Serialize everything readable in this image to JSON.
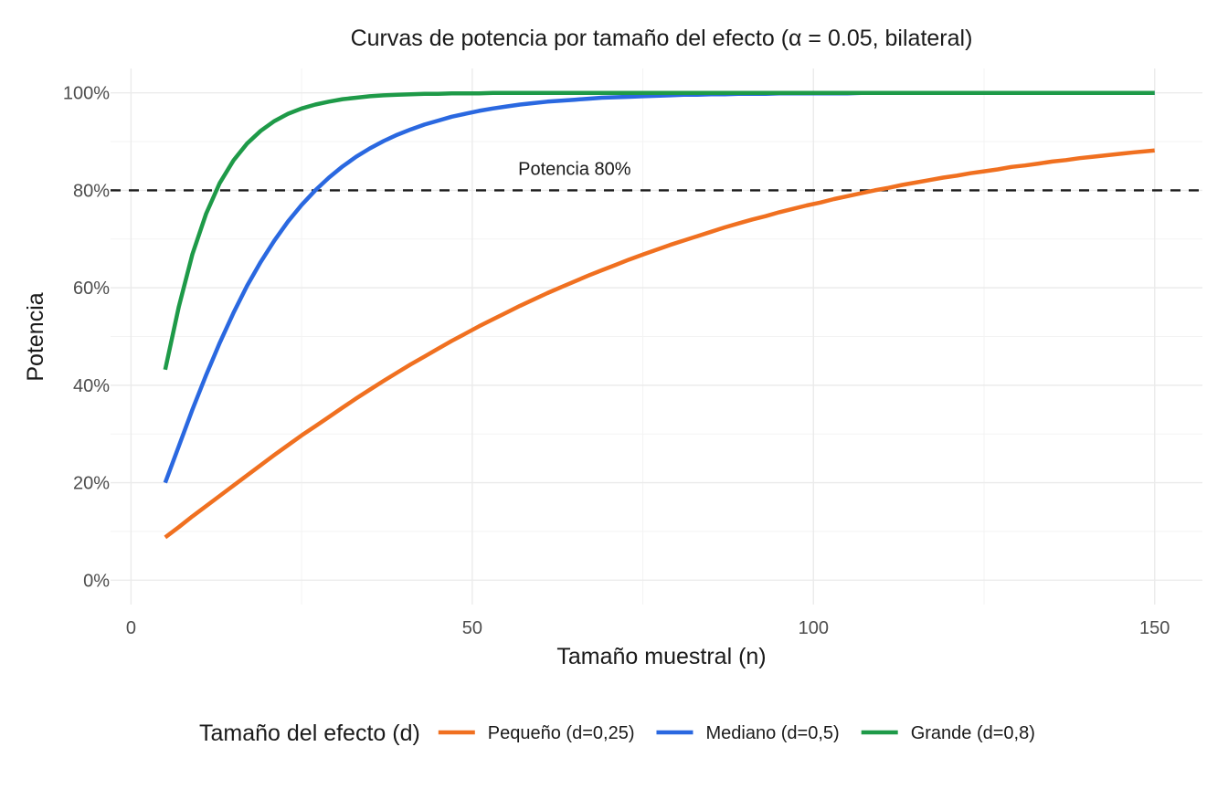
{
  "chart_data": {
    "type": "line",
    "title": "Curvas de potencia por tamaño del efecto (α = 0.05, bilateral)",
    "xlabel": "Tamaño muestral (n)",
    "ylabel": "Potencia",
    "xlim": [
      -3,
      157
    ],
    "ylim": [
      -0.05,
      1.05
    ],
    "x_ticks": [
      0,
      50,
      100,
      150
    ],
    "x_tick_labels": [
      "0",
      "50",
      "100",
      "150"
    ],
    "y_ticks": [
      0,
      0.2,
      0.4,
      0.6,
      0.8,
      1.0
    ],
    "y_tick_labels": [
      "0%",
      "20%",
      "40%",
      "60%",
      "80%",
      "100%"
    ],
    "grid": true,
    "reference_line": {
      "y": 0.8,
      "style": "dashed",
      "label": "Potencia 80%",
      "label_x": 65
    },
    "legend": {
      "title": "Tamaño del efecto (d)",
      "position": "bottom"
    },
    "series": [
      {
        "name": "Pequeño (d=0,25)",
        "color": "#F07020",
        "effect_size": 0.25
      },
      {
        "name": "Mediano (d=0,5)",
        "color": "#2A68E0",
        "effect_size": 0.5
      },
      {
        "name": "Grande (d=0,8)",
        "color": "#1E9A48",
        "effect_size": 0.8
      }
    ],
    "x": [
      5,
      7,
      9,
      11,
      13,
      15,
      17,
      19,
      21,
      23,
      25,
      27,
      29,
      31,
      33,
      35,
      37,
      39,
      41,
      43,
      45,
      47,
      49,
      51,
      53,
      55,
      57,
      59,
      61,
      63,
      65,
      67,
      69,
      71,
      73,
      75,
      77,
      79,
      81,
      83,
      85,
      87,
      89,
      91,
      93,
      95,
      97,
      99,
      101,
      103,
      105,
      107,
      109,
      111,
      113,
      115,
      117,
      119,
      121,
      123,
      125,
      127,
      129,
      131,
      133,
      135,
      137,
      139,
      141,
      143,
      145,
      147,
      150
    ],
    "values_by_series": [
      [
        0.088,
        0.109,
        0.131,
        0.152,
        0.173,
        0.194,
        0.215,
        0.236,
        0.257,
        0.277,
        0.297,
        0.316,
        0.335,
        0.354,
        0.373,
        0.391,
        0.409,
        0.426,
        0.443,
        0.459,
        0.475,
        0.491,
        0.506,
        0.521,
        0.535,
        0.549,
        0.563,
        0.576,
        0.589,
        0.601,
        0.613,
        0.625,
        0.636,
        0.647,
        0.658,
        0.668,
        0.678,
        0.688,
        0.697,
        0.706,
        0.715,
        0.724,
        0.732,
        0.74,
        0.747,
        0.755,
        0.762,
        0.769,
        0.775,
        0.782,
        0.788,
        0.794,
        0.8,
        0.805,
        0.811,
        0.816,
        0.821,
        0.826,
        0.83,
        0.835,
        0.839,
        0.843,
        0.848,
        0.851,
        0.855,
        0.859,
        0.862,
        0.866,
        0.869,
        0.872,
        0.875,
        0.878,
        0.882
      ],
      [
        0.2,
        0.275,
        0.35,
        0.421,
        0.487,
        0.548,
        0.604,
        0.653,
        0.697,
        0.736,
        0.77,
        0.8,
        0.826,
        0.849,
        0.869,
        0.886,
        0.901,
        0.914,
        0.925,
        0.935,
        0.943,
        0.951,
        0.957,
        0.963,
        0.968,
        0.972,
        0.976,
        0.979,
        0.982,
        0.984,
        0.986,
        0.988,
        0.99,
        0.991,
        0.992,
        0.993,
        0.994,
        0.995,
        0.996,
        0.996,
        0.997,
        0.997,
        0.998,
        0.998,
        0.998,
        0.999,
        0.999,
        0.999,
        0.999,
        0.999,
        0.999,
        1.0,
        1.0,
        1.0,
        1.0,
        1.0,
        1.0,
        1.0,
        1.0,
        1.0,
        1.0,
        1.0,
        1.0,
        1.0,
        1.0,
        1.0,
        1.0,
        1.0,
        1.0,
        1.0,
        1.0,
        1.0,
        1.0
      ],
      [
        0.432,
        0.561,
        0.669,
        0.752,
        0.815,
        0.861,
        0.896,
        0.922,
        0.942,
        0.957,
        0.968,
        0.976,
        0.982,
        0.987,
        0.99,
        0.993,
        0.995,
        0.996,
        0.997,
        0.998,
        0.998,
        0.999,
        0.999,
        0.999,
        1.0,
        1.0,
        1.0,
        1.0,
        1.0,
        1.0,
        1.0,
        1.0,
        1.0,
        1.0,
        1.0,
        1.0,
        1.0,
        1.0,
        1.0,
        1.0,
        1.0,
        1.0,
        1.0,
        1.0,
        1.0,
        1.0,
        1.0,
        1.0,
        1.0,
        1.0,
        1.0,
        1.0,
        1.0,
        1.0,
        1.0,
        1.0,
        1.0,
        1.0,
        1.0,
        1.0,
        1.0,
        1.0,
        1.0,
        1.0,
        1.0,
        1.0,
        1.0,
        1.0,
        1.0,
        1.0,
        1.0,
        1.0,
        1.0
      ]
    ]
  }
}
